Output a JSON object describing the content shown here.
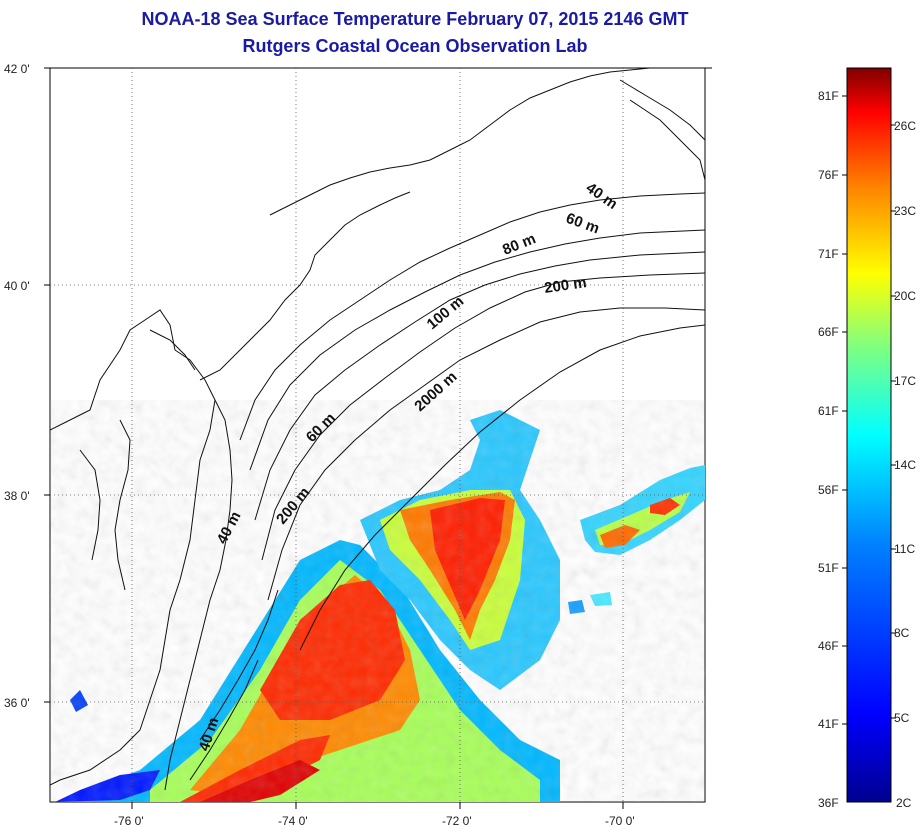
{
  "title": {
    "line1": "NOAA-18 Sea Surface Temperature February 07, 2015 2146 GMT",
    "line2": "Rutgers Coastal Ocean Observation Lab"
  },
  "axes": {
    "lat_labels": [
      "42 0'",
      "40 0'",
      "38 0'",
      "36 0'"
    ],
    "lon_labels": [
      "-76 0'",
      "-74 0'",
      "-72 0'",
      "-70 0'"
    ]
  },
  "isobaths": [
    "40 m",
    "60 m",
    "80 m",
    "100 m",
    "200 m",
    "2000 m",
    "60 m",
    "40 m",
    "200 m",
    "40 m"
  ],
  "colorbar": {
    "f_labels": [
      "81F",
      "76F",
      "71F",
      "66F",
      "61F",
      "56F",
      "51F",
      "46F",
      "41F",
      "36F"
    ],
    "c_labels": [
      "26C",
      "23C",
      "20C",
      "17C",
      "14C",
      "11C",
      "8C",
      "5C",
      "2C"
    ],
    "colors": [
      "#00008f",
      "#0000ff",
      "#0080ff",
      "#00ffff",
      "#80ff80",
      "#ffff00",
      "#ff8000",
      "#ff0000",
      "#800000"
    ]
  },
  "colors": {
    "title": "#1a1aa6",
    "coast": "#111111",
    "grid": "#555555"
  }
}
